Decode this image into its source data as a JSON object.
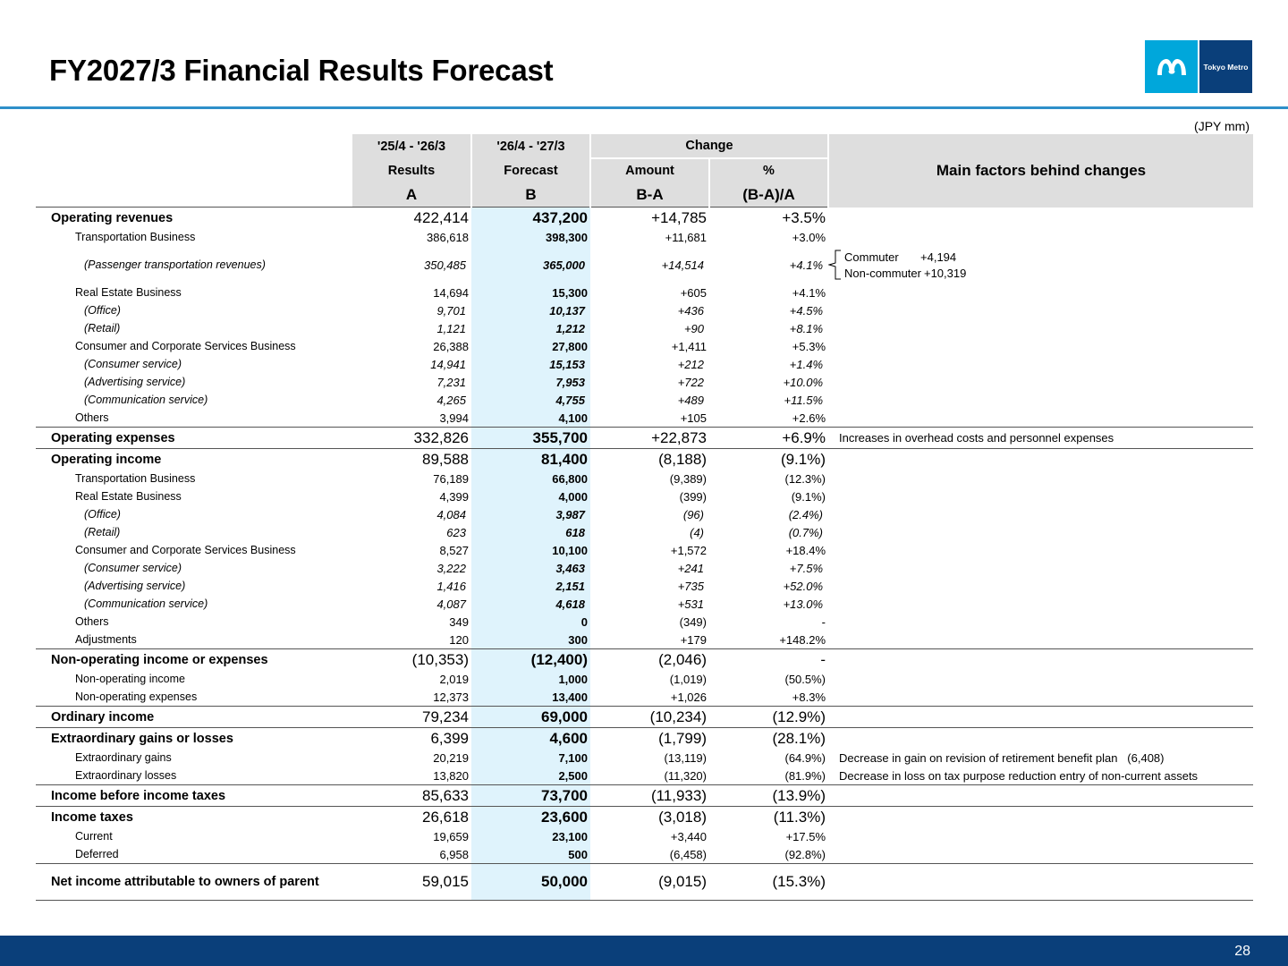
{
  "header": {
    "title": "FY2027/3 Financial Results Forecast",
    "logo_text": "Tokyo Metro",
    "unit": "(JPY mm)"
  },
  "columns": {
    "period_a": "'25/4 - '26/3",
    "period_b": "'26/4 - '27/3",
    "change": "Change",
    "results": "Results",
    "forecast": "Forecast",
    "amount": "Amount",
    "pct": "%",
    "a": "A",
    "b": "B",
    "ba": "B-A",
    "ba_pct": "(B-A)/A",
    "factors": "Main factors behind changes"
  },
  "rows": [
    {
      "label": "Operating revenues",
      "a": "422,414",
      "b": "437,200",
      "amt": "+14,785",
      "pct": "+3.5%",
      "note": ""
    },
    {
      "label": "Transportation Business",
      "a": "386,618",
      "b": "398,300",
      "amt": "+11,681",
      "pct": "+3.0%",
      "note": ""
    },
    {
      "label": "(Passenger transportation revenues)",
      "a": "350,485",
      "b": "365,000",
      "amt": "+14,514",
      "pct": "+4.1%",
      "note": ""
    },
    {
      "label": "Real Estate Business",
      "a": "14,694",
      "b": "15,300",
      "amt": "+605",
      "pct": "+4.1%",
      "note": ""
    },
    {
      "label": "(Office)",
      "a": "9,701",
      "b": "10,137",
      "amt": "+436",
      "pct": "+4.5%",
      "note": ""
    },
    {
      "label": "(Retail)",
      "a": "1,121",
      "b": "1,212",
      "amt": "+90",
      "pct": "+8.1%",
      "note": ""
    },
    {
      "label": "Consumer and Corporate Services Business",
      "a": "26,388",
      "b": "27,800",
      "amt": "+1,411",
      "pct": "+5.3%",
      "note": ""
    },
    {
      "label": "(Consumer service)",
      "a": "14,941",
      "b": "15,153",
      "amt": "+212",
      "pct": "+1.4%",
      "note": ""
    },
    {
      "label": "(Advertising service)",
      "a": "7,231",
      "b": "7,953",
      "amt": "+722",
      "pct": "+10.0%",
      "note": ""
    },
    {
      "label": "(Communication service)",
      "a": "4,265",
      "b": "4,755",
      "amt": "+489",
      "pct": "+11.5%",
      "note": ""
    },
    {
      "label": "Others",
      "a": "3,994",
      "b": "4,100",
      "amt": "+105",
      "pct": "+2.6%",
      "note": ""
    },
    {
      "label": "Operating expenses",
      "a": "332,826",
      "b": "355,700",
      "amt": "+22,873",
      "pct": "+6.9%",
      "note": "Increases in overhead costs and personnel expenses"
    },
    {
      "label": "Operating income",
      "a": "89,588",
      "b": "81,400",
      "amt": "(8,188)",
      "pct": "(9.1%)",
      "note": ""
    },
    {
      "label": "Transportation Business",
      "a": "76,189",
      "b": "66,800",
      "amt": "(9,389)",
      "pct": "(12.3%)",
      "note": ""
    },
    {
      "label": "Real Estate Business",
      "a": "4,399",
      "b": "4,000",
      "amt": "(399)",
      "pct": "(9.1%)",
      "note": ""
    },
    {
      "label": "(Office)",
      "a": "4,084",
      "b": "3,987",
      "amt": "(96)",
      "pct": "(2.4%)",
      "note": ""
    },
    {
      "label": "(Retail)",
      "a": "623",
      "b": "618",
      "amt": "(4)",
      "pct": "(0.7%)",
      "note": ""
    },
    {
      "label": "Consumer and Corporate Services Business",
      "a": "8,527",
      "b": "10,100",
      "amt": "+1,572",
      "pct": "+18.4%",
      "note": ""
    },
    {
      "label": "(Consumer service)",
      "a": "3,222",
      "b": "3,463",
      "amt": "+241",
      "pct": "+7.5%",
      "note": ""
    },
    {
      "label": "(Advertising service)",
      "a": "1,416",
      "b": "2,151",
      "amt": "+735",
      "pct": "+52.0%",
      "note": ""
    },
    {
      "label": "(Communication service)",
      "a": "4,087",
      "b": "4,618",
      "amt": "+531",
      "pct": "+13.0%",
      "note": ""
    },
    {
      "label": "Others",
      "a": "349",
      "b": "0",
      "amt": "(349)",
      "pct": "-",
      "note": ""
    },
    {
      "label": "Adjustments",
      "a": "120",
      "b": "300",
      "amt": "+179",
      "pct": "+148.2%",
      "note": ""
    },
    {
      "label": "Non-operating income or expenses",
      "a": "(10,353)",
      "b": "(12,400)",
      "amt": "(2,046)",
      "pct": "-",
      "note": ""
    },
    {
      "label": "Non-operating income",
      "a": "2,019",
      "b": "1,000",
      "amt": "(1,019)",
      "pct": "(50.5%)",
      "note": ""
    },
    {
      "label": "Non-operating expenses",
      "a": "12,373",
      "b": "13,400",
      "amt": "+1,026",
      "pct": "+8.3%",
      "note": ""
    },
    {
      "label": "Ordinary income",
      "a": "79,234",
      "b": "69,000",
      "amt": "(10,234)",
      "pct": "(12.9%)",
      "note": ""
    },
    {
      "label": "Extraordinary gains or losses",
      "a": "6,399",
      "b": "4,600",
      "amt": "(1,799)",
      "pct": "(28.1%)",
      "note": ""
    },
    {
      "label": "Extraordinary gains",
      "a": "20,219",
      "b": "7,100",
      "amt": "(13,119)",
      "pct": "(64.9%)",
      "note": "Decrease in gain on revision of retirement benefit plan   (6,408)"
    },
    {
      "label": "Extraordinary losses",
      "a": "13,820",
      "b": "2,500",
      "amt": "(11,320)",
      "pct": "(81.9%)",
      "note": "Decrease in loss on tax purpose reduction entry of non-current assets"
    },
    {
      "label": "Income before income taxes",
      "a": "85,633",
      "b": "73,700",
      "amt": "(11,933)",
      "pct": "(13.9%)",
      "note": ""
    },
    {
      "label": "Income taxes",
      "a": "26,618",
      "b": "23,600",
      "amt": "(3,018)",
      "pct": "(11.3%)",
      "note": ""
    },
    {
      "label": "Current",
      "a": "19,659",
      "b": "23,100",
      "amt": "+3,440",
      "pct": "+17.5%",
      "note": ""
    },
    {
      "label": "Deferred",
      "a": "6,958",
      "b": "500",
      "amt": "(6,458)",
      "pct": "(92.8%)",
      "note": ""
    },
    {
      "label": "Net income attributable to owners of parent",
      "a": "59,015",
      "b": "50,000",
      "amt": "(9,015)",
      "pct": "(15.3%)",
      "note": ""
    }
  ],
  "passenger_breakdown": {
    "commuter_label": "Commuter",
    "commuter_value": "+4,194",
    "noncommuter_label": "Non-commuter",
    "noncommuter_value": "+10,319"
  },
  "footer": {
    "page": "28"
  }
}
